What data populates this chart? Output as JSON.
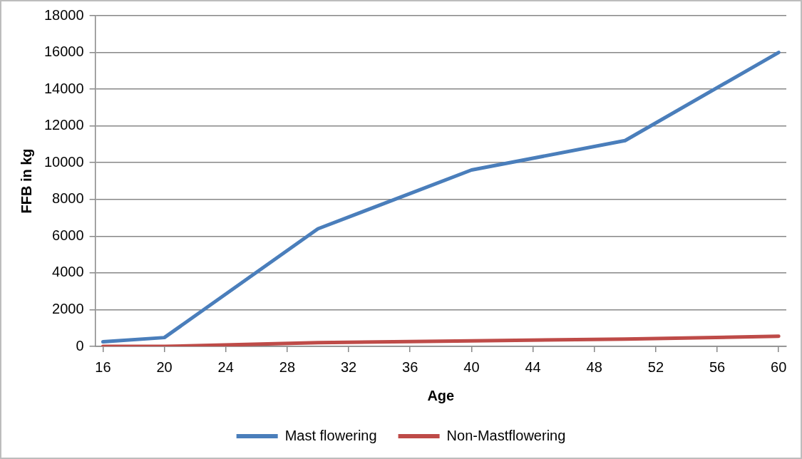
{
  "chart_data": {
    "type": "line",
    "xlabel": "Age",
    "ylabel": "FFB in kg",
    "x": [
      16,
      20,
      30,
      40,
      50,
      60
    ],
    "series": [
      {
        "name": "Mast flowering",
        "color": "#4a7ebb",
        "values": [
          250,
          480,
          6400,
          9600,
          11200,
          16000
        ]
      },
      {
        "name": "Non-Mastflowering",
        "color": "#be4b48",
        "values": [
          0,
          0,
          200,
          300,
          400,
          550
        ]
      }
    ],
    "xlim": [
      15.5,
      60.5
    ],
    "xticks": [
      16,
      20,
      24,
      28,
      32,
      36,
      40,
      44,
      48,
      52,
      56,
      60
    ],
    "ylim": [
      0,
      18000
    ],
    "yticks": [
      0,
      2000,
      4000,
      6000,
      8000,
      10000,
      12000,
      14000,
      16000,
      18000
    ],
    "grid": "y",
    "legend": "bottom",
    "marker": "none",
    "line_style": "solid"
  }
}
